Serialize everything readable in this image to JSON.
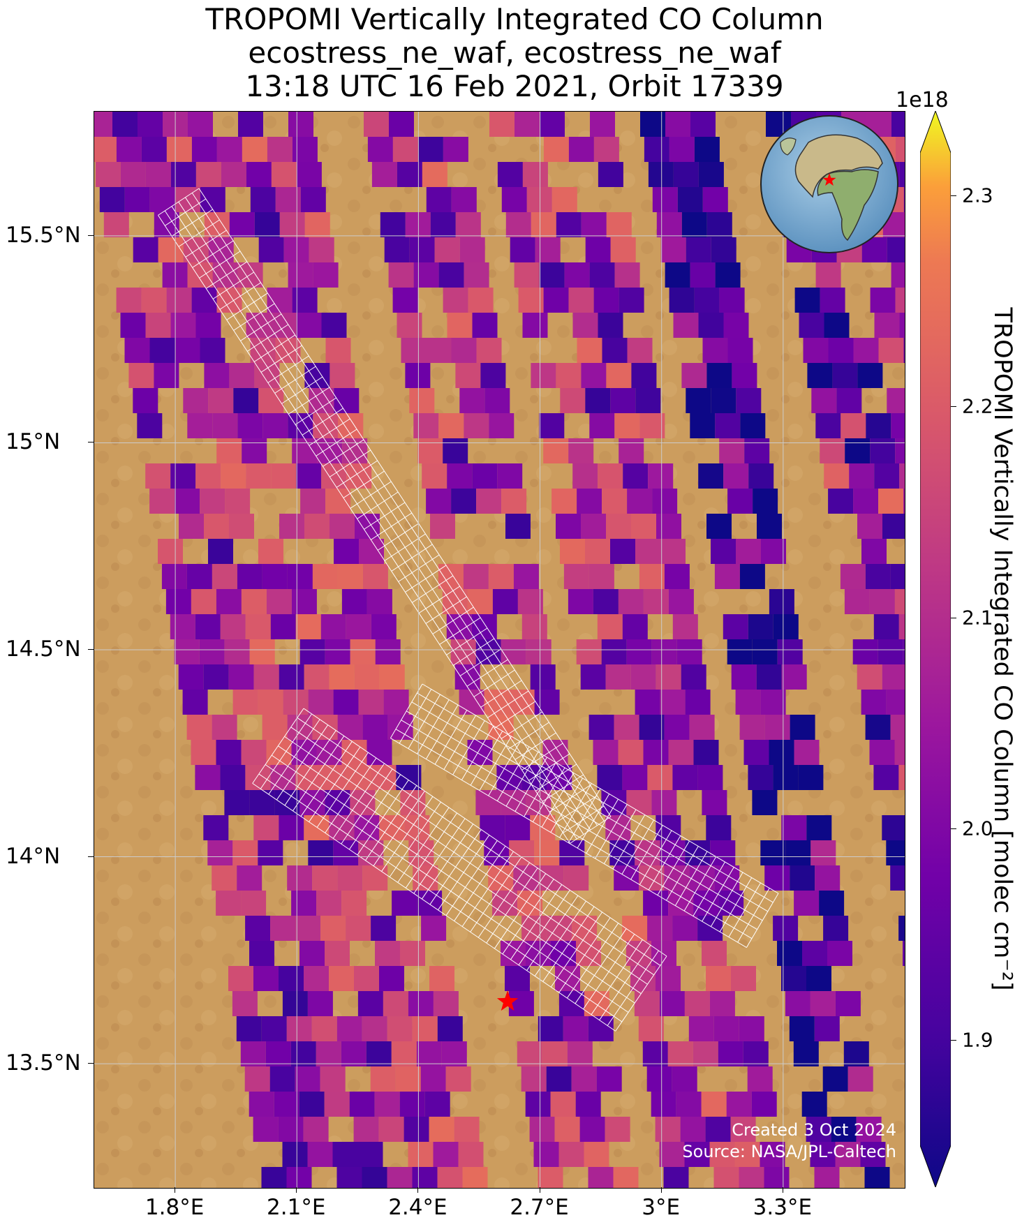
{
  "title": {
    "line1": "TROPOMI Vertically Integrated CO Column",
    "line2": "ecostress_ne_waf, ecostress_ne_waf",
    "line3": "13:18 UTC 16 Feb 2021, Orbit 17339"
  },
  "x_ticks": [
    "1.8°E",
    "2.1°E",
    "2.4°E",
    "2.7°E",
    "3°E",
    "3.3°E"
  ],
  "y_ticks": [
    "15.5°N",
    "15°N",
    "14.5°N",
    "14°N",
    "13.5°N"
  ],
  "colorbar": {
    "title": "TROPOMI Vertically Integrated CO Column [molec cm⁻²]",
    "exponent": "1e18",
    "ticks": [
      "2.3",
      "2.2",
      "2.1",
      "2.0",
      "1.9"
    ],
    "colormap": "plasma",
    "min": 1.85,
    "max": 2.32,
    "extend": "both"
  },
  "credit": {
    "created": "Created 3 Oct 2024",
    "source": "Source: NASA/JPL-Caltech"
  },
  "map": {
    "lon_range": [
      1.6,
      3.6
    ],
    "lat_range": [
      13.2,
      15.8
    ],
    "basemap": "satellite imagery (Sahel desert)",
    "gridlines": true,
    "target_marker": {
      "lon": 2.62,
      "lat": 13.65,
      "symbol": "red-star"
    },
    "inset": "orthographic globe with red star marking target over West Africa"
  },
  "colors": {
    "star": "#ff0000",
    "grid": "#cccccc",
    "footprint": "#ffffff",
    "desert": "#c99a5c"
  }
}
